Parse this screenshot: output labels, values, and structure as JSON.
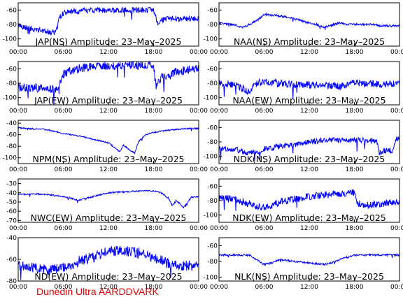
{
  "footer": {
    "text": "Dunedin Ultra AARDDVARK",
    "color": "#e00000"
  },
  "colors": {
    "trace": "#0000ff",
    "axes": "#000000"
  },
  "chart_data": [
    {
      "type": "line",
      "title": "JAP(NS) Amplitude: 23–May–2025",
      "xticks": [
        "00:00",
        "06:00",
        "12:00",
        "18:00",
        "00:00"
      ],
      "xlim": [
        0,
        24
      ],
      "yticks": [
        -60,
        -80,
        -100
      ],
      "ylim": [
        -110,
        -50
      ],
      "series": [
        {
          "x": [
            0,
            2,
            4,
            5,
            5.5,
            6,
            7,
            9,
            12,
            15,
            18,
            18.5,
            19,
            19.5,
            21,
            24
          ],
          "y": [
            -82,
            -86,
            -90,
            -92,
            -70,
            -64,
            -62,
            -61,
            -60,
            -60,
            -60,
            -78,
            -75,
            -72,
            -72,
            -72
          ],
          "noise": 4
        }
      ]
    },
    {
      "type": "line",
      "title": "NAA(NS) Amplitude: 23–May–2025",
      "xticks": [
        "00:00",
        "06:00",
        "12:00",
        "18:00",
        "00:00"
      ],
      "xlim": [
        0,
        24
      ],
      "yticks": [
        -60,
        -80,
        -100
      ],
      "ylim": [
        -110,
        -50
      ],
      "series": [
        {
          "x": [
            0,
            2,
            3,
            4,
            5,
            6,
            7,
            8,
            9,
            10,
            11,
            12,
            13,
            14,
            16,
            17,
            18,
            20,
            22,
            24
          ],
          "y": [
            -78,
            -80,
            -84,
            -80,
            -75,
            -66,
            -67,
            -68,
            -70,
            -72,
            -75,
            -78,
            -80,
            -84,
            -78,
            -80,
            -80,
            -80,
            -82,
            -82
          ],
          "noise": 1.5
        }
      ]
    },
    {
      "type": "line",
      "title": "JAP(EW) Amplitude: 23–May–2025",
      "xticks": [
        "00:00",
        "06:00",
        "12:00",
        "18:00",
        "00:00"
      ],
      "xlim": [
        0,
        24
      ],
      "yticks": [
        -60,
        -80,
        -100
      ],
      "ylim": [
        -110,
        -50
      ],
      "series": [
        {
          "x": [
            0,
            2,
            4,
            5,
            6,
            7,
            9,
            12,
            15,
            18,
            18.3,
            19,
            20,
            21,
            24
          ],
          "y": [
            -86,
            -86,
            -88,
            -90,
            -68,
            -62,
            -58,
            -56,
            -55,
            -55,
            -84,
            -72,
            -70,
            -64,
            -60
          ],
          "noise": 6
        }
      ]
    },
    {
      "type": "line",
      "title": "NAA(EW) Amplitude: 23–May–2025",
      "xticks": [
        "00:00",
        "06:00",
        "12:00",
        "18:00",
        "00:00"
      ],
      "xlim": [
        0,
        24
      ],
      "yticks": [
        -60,
        -80,
        -100
      ],
      "ylim": [
        -110,
        -50
      ],
      "series": [
        {
          "x": [
            0,
            2,
            3,
            4,
            5,
            6,
            8,
            10,
            12,
            14,
            16,
            18,
            20,
            22,
            24
          ],
          "y": [
            -80,
            -82,
            -86,
            -92,
            -80,
            -78,
            -80,
            -82,
            -82,
            -83,
            -84,
            -80,
            -80,
            -82,
            -80
          ],
          "noise": 5
        }
      ]
    },
    {
      "type": "line",
      "title": "NPM(NS) Amplitude: 23–May–2025",
      "xticks": [
        "00:00",
        "06:00",
        "12:00",
        "18:00",
        "00:00"
      ],
      "xlim": [
        0,
        24
      ],
      "yticks": [
        -40,
        -60,
        -80,
        -100
      ],
      "ylim": [
        -110,
        -35
      ],
      "series": [
        {
          "x": [
            0,
            2,
            3,
            4,
            5,
            6,
            8,
            10,
            12,
            13,
            13.5,
            14,
            15,
            15.5,
            16,
            17,
            18,
            20,
            22,
            24
          ],
          "y": [
            -48,
            -50,
            -50,
            -52,
            -55,
            -58,
            -62,
            -68,
            -74,
            -84,
            -90,
            -78,
            -88,
            -92,
            -72,
            -60,
            -56,
            -52,
            -50,
            -49
          ],
          "noise": 1.2
        }
      ]
    },
    {
      "type": "line",
      "title": "NDK(NS) Amplitude: 23–May–2025",
      "xticks": [
        "00:00",
        "06:00",
        "12:00",
        "18:00",
        "00:00"
      ],
      "xlim": [
        0,
        24
      ],
      "yticks": [
        -60,
        -80,
        -100
      ],
      "ylim": [
        -110,
        -50
      ],
      "series": [
        {
          "x": [
            0,
            2,
            4,
            5,
            6,
            8,
            10,
            12,
            14,
            16,
            18,
            20,
            21,
            21.3,
            22,
            23.2,
            23.5,
            24
          ],
          "y": [
            -90,
            -90,
            -95,
            -95,
            -90,
            -86,
            -84,
            -80,
            -78,
            -77,
            -78,
            -78,
            -80,
            -94,
            -92,
            -92,
            -76,
            -76
          ],
          "noise": 4
        }
      ]
    },
    {
      "type": "line",
      "title": "NWC(EW) Amplitude: 23–May–2025",
      "xticks": [
        "00:00",
        "06:00",
        "12:00",
        "18:00",
        "00:00"
      ],
      "xlim": [
        0,
        24
      ],
      "yticks": [
        -30,
        -40,
        -50,
        -60,
        -70
      ],
      "ylim": [
        -72,
        -25
      ],
      "series": [
        {
          "x": [
            0,
            2,
            4,
            6,
            7,
            8,
            10,
            12,
            14,
            16,
            18,
            19,
            20,
            20.5,
            21,
            22,
            23,
            24
          ],
          "y": [
            -42,
            -41,
            -42,
            -44,
            -46,
            -48,
            -44,
            -40,
            -39,
            -38,
            -38,
            -40,
            -46,
            -54,
            -48,
            -56,
            -45,
            -44
          ],
          "noise": 0.8
        }
      ]
    },
    {
      "type": "line",
      "title": "NDK(EW) Amplitude: 23–May–2025",
      "xticks": [
        "00:00",
        "06:00",
        "12:00",
        "18:00",
        "00:00"
      ],
      "xlim": [
        0,
        24
      ],
      "yticks": [
        -60,
        -80,
        -100
      ],
      "ylim": [
        -110,
        -50
      ],
      "series": [
        {
          "x": [
            0,
            2,
            4,
            6,
            8,
            10,
            12,
            14,
            16,
            18,
            18.3,
            20,
            22,
            24
          ],
          "y": [
            -76,
            -78,
            -84,
            -90,
            -82,
            -78,
            -74,
            -72,
            -70,
            -69,
            -84,
            -86,
            -84,
            -82
          ],
          "noise": 5
        }
      ]
    },
    {
      "type": "line",
      "title": "ND(EW) Amplitude: 23–May–2025",
      "xticks": [
        "00:00",
        "06:00",
        "12:00",
        "18:00",
        "00:00"
      ],
      "xlim": [
        0,
        24
      ],
      "yticks": [
        -40,
        -60,
        -80
      ],
      "ylim": [
        -80,
        -40
      ],
      "series": [
        {
          "x": [
            0,
            2,
            4,
            6,
            8,
            10,
            12,
            14,
            16,
            18,
            20,
            22,
            24
          ],
          "y": [
            -66,
            -68,
            -70,
            -68,
            -62,
            -58,
            -52,
            -52,
            -54,
            -58,
            -64,
            -66,
            -66
          ],
          "noise": 5
        }
      ]
    },
    {
      "type": "line",
      "title": "NLK(NS) Amplitude: 23–May–2025",
      "xticks": [
        "00:00",
        "06:00",
        "12:00",
        "18:00",
        "00:00"
      ],
      "xlim": [
        0,
        24
      ],
      "yticks": [
        -60,
        -80,
        -100
      ],
      "ylim": [
        -105,
        -50
      ],
      "series": [
        {
          "x": [
            0,
            2,
            4,
            5,
            6,
            7,
            8,
            10,
            12,
            14,
            15,
            16,
            18,
            20,
            22,
            24
          ],
          "y": [
            -72,
            -72,
            -72,
            -78,
            -84,
            -82,
            -78,
            -80,
            -82,
            -84,
            -82,
            -78,
            -72,
            -72,
            -72,
            -72
          ],
          "noise": 1.2
        }
      ]
    }
  ]
}
